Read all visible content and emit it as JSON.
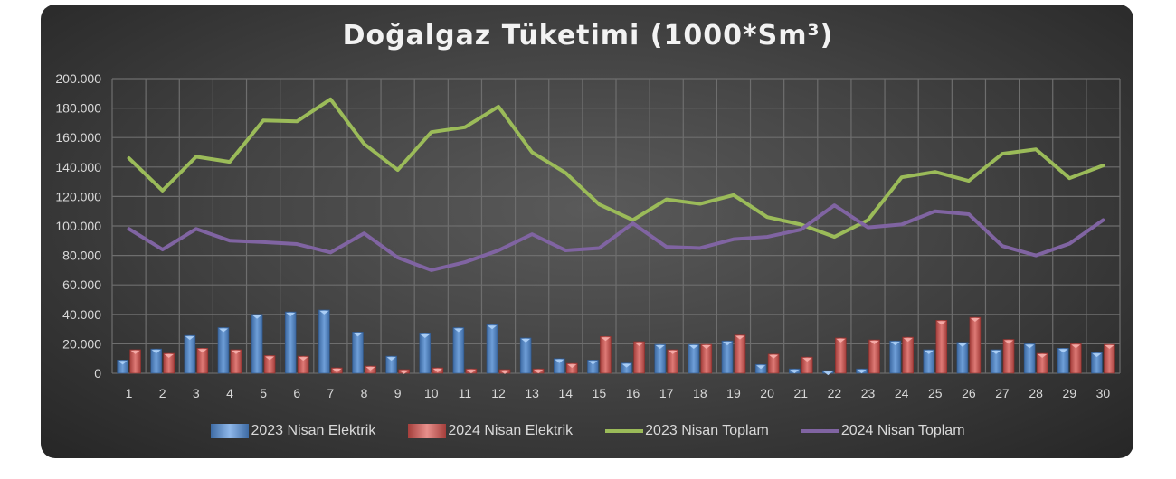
{
  "chart_data": {
    "type": "bar+line",
    "title": "Doğalgaz Tüketimi (1000*Sm³)",
    "categories": [
      "1",
      "2",
      "3",
      "4",
      "5",
      "6",
      "7",
      "8",
      "9",
      "10",
      "11",
      "12",
      "13",
      "14",
      "15",
      "16",
      "17",
      "18",
      "19",
      "20",
      "21",
      "22",
      "23",
      "24",
      "25",
      "26",
      "27",
      "28",
      "29",
      "30"
    ],
    "ylim": [
      0,
      200000
    ],
    "yticks": [
      "0",
      "20.000",
      "40.000",
      "60.000",
      "80.000",
      "100.000",
      "120.000",
      "140.000",
      "160.000",
      "180.000",
      "200.000"
    ],
    "grid": true,
    "legend_position": "bottom",
    "series": [
      {
        "name": "2023 Nisan Elektrik",
        "type": "bar",
        "color": "#4f81bd",
        "values": [
          9000,
          16500,
          25700,
          31000,
          40000,
          41700,
          43000,
          28000,
          11600,
          27000,
          31000,
          33000,
          24000,
          10000,
          9000,
          7000,
          19600,
          19600,
          22000,
          6000,
          3000,
          1800,
          3000,
          22000,
          16000,
          21000,
          16000,
          20000,
          17000,
          14000
        ]
      },
      {
        "name": "2024 Nisan Elektrik",
        "type": "bar",
        "color": "#c0504d",
        "values": [
          16000,
          13500,
          17000,
          16000,
          12000,
          11600,
          3700,
          4900,
          2500,
          3700,
          3000,
          2500,
          3000,
          6700,
          25000,
          21500,
          16000,
          19600,
          26000,
          13000,
          11000,
          24000,
          22700,
          24500,
          36000,
          38000,
          23000,
          13500,
          20000,
          19600
        ]
      },
      {
        "name": "2023 Nisan Toplam",
        "type": "line",
        "color": "#9bbb59",
        "values": [
          146000,
          124000,
          147000,
          143500,
          171600,
          171000,
          186000,
          155700,
          138000,
          163700,
          167000,
          181000,
          150000,
          136000,
          114600,
          104000,
          118000,
          115000,
          121000,
          106000,
          101000,
          92600,
          104000,
          133000,
          136700,
          130600,
          149000,
          152000,
          132400,
          141000
        ]
      },
      {
        "name": "2024 Nisan Toplam",
        "type": "line",
        "color": "#8064a2",
        "values": [
          98000,
          84000,
          98000,
          90000,
          89000,
          87700,
          82000,
          95000,
          78500,
          70000,
          75400,
          83400,
          94400,
          83400,
          85000,
          101800,
          85800,
          85000,
          91000,
          92600,
          97500,
          114000,
          99000,
          101000,
          110000,
          108000,
          86400,
          80000,
          88000,
          104000
        ]
      }
    ]
  }
}
